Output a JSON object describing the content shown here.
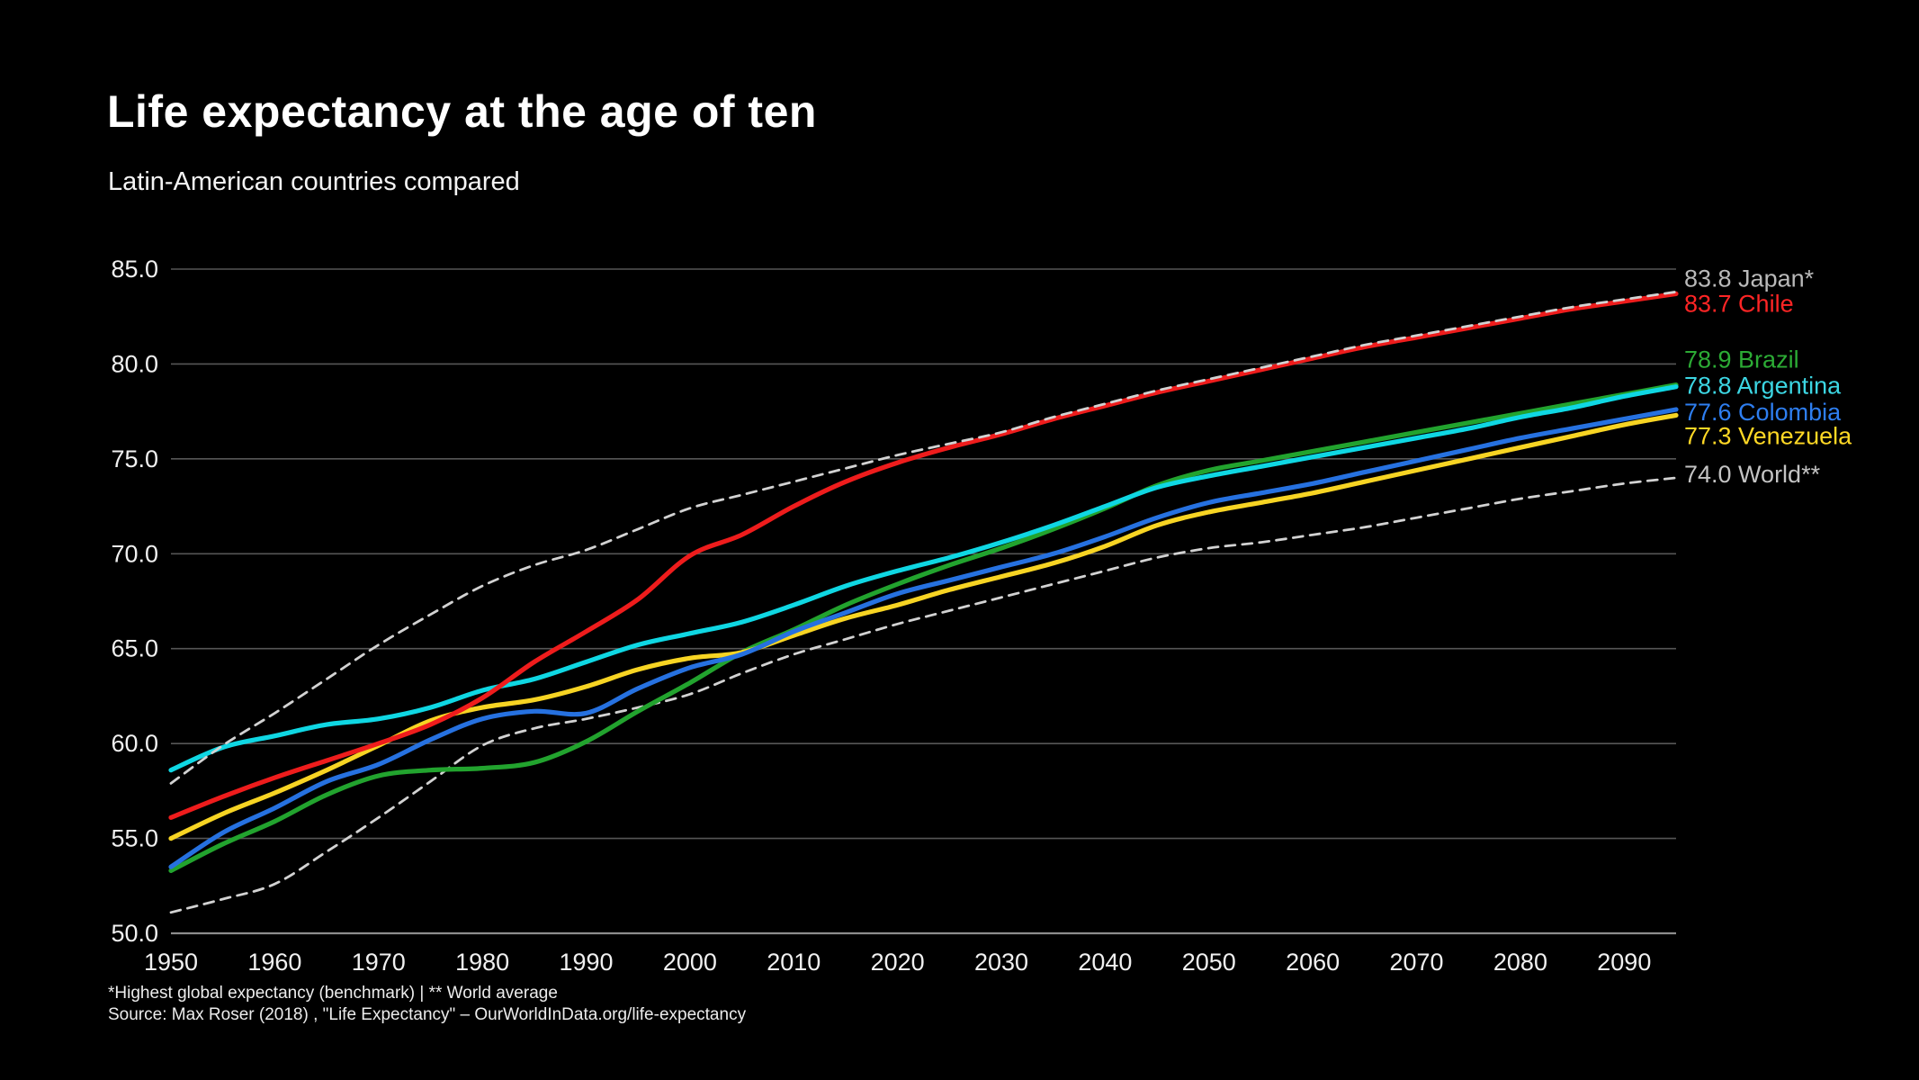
{
  "header": {
    "title": "Life expectancy at the age of ten",
    "subtitle": "Latin-American countries compared"
  },
  "footer": {
    "note": "*Highest global expectancy (benchmark) | ** World average",
    "source": "Source: Max Roser (2018) , \"Life Expectancy\" – OurWorldInData.org/life-expectancy"
  },
  "chart_data": {
    "type": "line",
    "title": "Life expectancy at the age of ten",
    "xlabel": "",
    "ylabel": "",
    "grid": "horizontal",
    "legend_position": "right-edge-labels",
    "background": "#000000",
    "x_range": [
      1950,
      2095
    ],
    "y_range": [
      50,
      85
    ],
    "x_ticks": [
      1950,
      1960,
      1970,
      1980,
      1990,
      2000,
      2010,
      2020,
      2030,
      2040,
      2050,
      2060,
      2070,
      2080,
      2090
    ],
    "y_ticks": [
      50,
      55,
      60,
      65,
      70,
      75,
      80,
      85
    ],
    "x": [
      1950,
      1955,
      1960,
      1965,
      1970,
      1975,
      1980,
      1985,
      1990,
      1995,
      2000,
      2005,
      2010,
      2015,
      2020,
      2025,
      2030,
      2035,
      2040,
      2045,
      2050,
      2055,
      2060,
      2065,
      2070,
      2075,
      2080,
      2085,
      2090,
      2095
    ],
    "series": [
      {
        "id": "japan",
        "name": "Japan",
        "label": "83.8 Japan*",
        "end_value": 83.8,
        "color": "#d2d2d2",
        "label_color": "#b9b9b9",
        "style": "dashed",
        "label_dy": -15,
        "values": [
          57.9,
          59.9,
          61.6,
          63.4,
          65.2,
          66.8,
          68.3,
          69.4,
          70.2,
          71.3,
          72.4,
          73.1,
          73.8,
          74.5,
          75.2,
          75.8,
          76.4,
          77.2,
          77.9,
          78.6,
          79.2,
          79.8,
          80.4,
          81.0,
          81.5,
          82.0,
          82.5,
          83.0,
          83.4,
          83.8
        ]
      },
      {
        "id": "chile",
        "name": "Chile",
        "label": "83.7 Chile",
        "end_value": 83.7,
        "color": "#ee1c1c",
        "label_color": "#ff2525",
        "style": "solid",
        "label_dy": 11,
        "values": [
          56.1,
          57.2,
          58.2,
          59.1,
          60.0,
          61.0,
          62.4,
          64.3,
          65.9,
          67.6,
          69.9,
          71.0,
          72.5,
          73.8,
          74.8,
          75.6,
          76.3,
          77.1,
          77.8,
          78.5,
          79.1,
          79.7,
          80.3,
          80.9,
          81.4,
          81.9,
          82.4,
          82.9,
          83.3,
          83.7
        ]
      },
      {
        "id": "brazil",
        "name": "Brazil",
        "label": "78.9 Brazil",
        "end_value": 78.9,
        "color": "#22a32e",
        "label_color": "#2cab35",
        "style": "solid",
        "label_dy": -28,
        "values": [
          53.3,
          54.7,
          55.9,
          57.3,
          58.3,
          58.6,
          58.7,
          59.0,
          60.1,
          61.7,
          63.2,
          64.8,
          66.0,
          67.3,
          68.4,
          69.4,
          70.3,
          71.3,
          72.4,
          73.6,
          74.4,
          74.9,
          75.4,
          75.9,
          76.4,
          76.9,
          77.4,
          77.9,
          78.4,
          78.9
        ]
      },
      {
        "id": "argentina",
        "name": "Argentina",
        "label": "78.8 Argentina",
        "end_value": 78.8,
        "color": "#0fd7e3",
        "label_color": "#3cd6e3",
        "style": "solid",
        "label_dy": -1,
        "values": [
          58.6,
          59.8,
          60.4,
          61.0,
          61.3,
          61.9,
          62.8,
          63.4,
          64.3,
          65.2,
          65.8,
          66.4,
          67.3,
          68.3,
          69.1,
          69.8,
          70.6,
          71.5,
          72.5,
          73.5,
          74.1,
          74.6,
          75.1,
          75.6,
          76.1,
          76.6,
          77.2,
          77.7,
          78.3,
          78.8
        ]
      },
      {
        "id": "colombia",
        "name": "Colombia",
        "label": "77.6 Colombia",
        "end_value": 77.6,
        "color": "#2671e0",
        "label_color": "#2e7ef0",
        "style": "solid",
        "label_dy": 3,
        "values": [
          53.5,
          55.3,
          56.6,
          58.0,
          58.9,
          60.2,
          61.3,
          61.7,
          61.6,
          62.9,
          64.0,
          64.7,
          65.9,
          66.9,
          67.9,
          68.6,
          69.3,
          70.0,
          70.9,
          71.9,
          72.7,
          73.2,
          73.7,
          74.3,
          74.9,
          75.5,
          76.1,
          76.6,
          77.1,
          77.6
        ]
      },
      {
        "id": "venezuela",
        "name": "Venezuela",
        "label": "77.3 Venezuela",
        "end_value": 77.3,
        "color": "#f7d423",
        "label_color": "#ffd825",
        "style": "solid",
        "label_dy": 23,
        "values": [
          55.0,
          56.3,
          57.4,
          58.6,
          59.9,
          61.2,
          61.9,
          62.3,
          63.0,
          63.9,
          64.5,
          64.8,
          65.7,
          66.6,
          67.3,
          68.1,
          68.8,
          69.5,
          70.4,
          71.5,
          72.2,
          72.7,
          73.2,
          73.8,
          74.4,
          75.0,
          75.6,
          76.2,
          76.8,
          77.3
        ]
      },
      {
        "id": "world",
        "name": "World",
        "label": "74.0 World**",
        "end_value": 74.0,
        "color": "#d2d2d2",
        "label_color": "#c3c3c3",
        "style": "dashed",
        "label_dy": -4,
        "values": [
          51.1,
          51.8,
          52.6,
          54.3,
          56.1,
          58.0,
          59.9,
          60.8,
          61.3,
          61.9,
          62.6,
          63.7,
          64.7,
          65.5,
          66.3,
          67.0,
          67.7,
          68.4,
          69.1,
          69.8,
          70.3,
          70.6,
          71.0,
          71.4,
          71.9,
          72.4,
          72.9,
          73.3,
          73.7,
          74.0
        ]
      }
    ]
  }
}
